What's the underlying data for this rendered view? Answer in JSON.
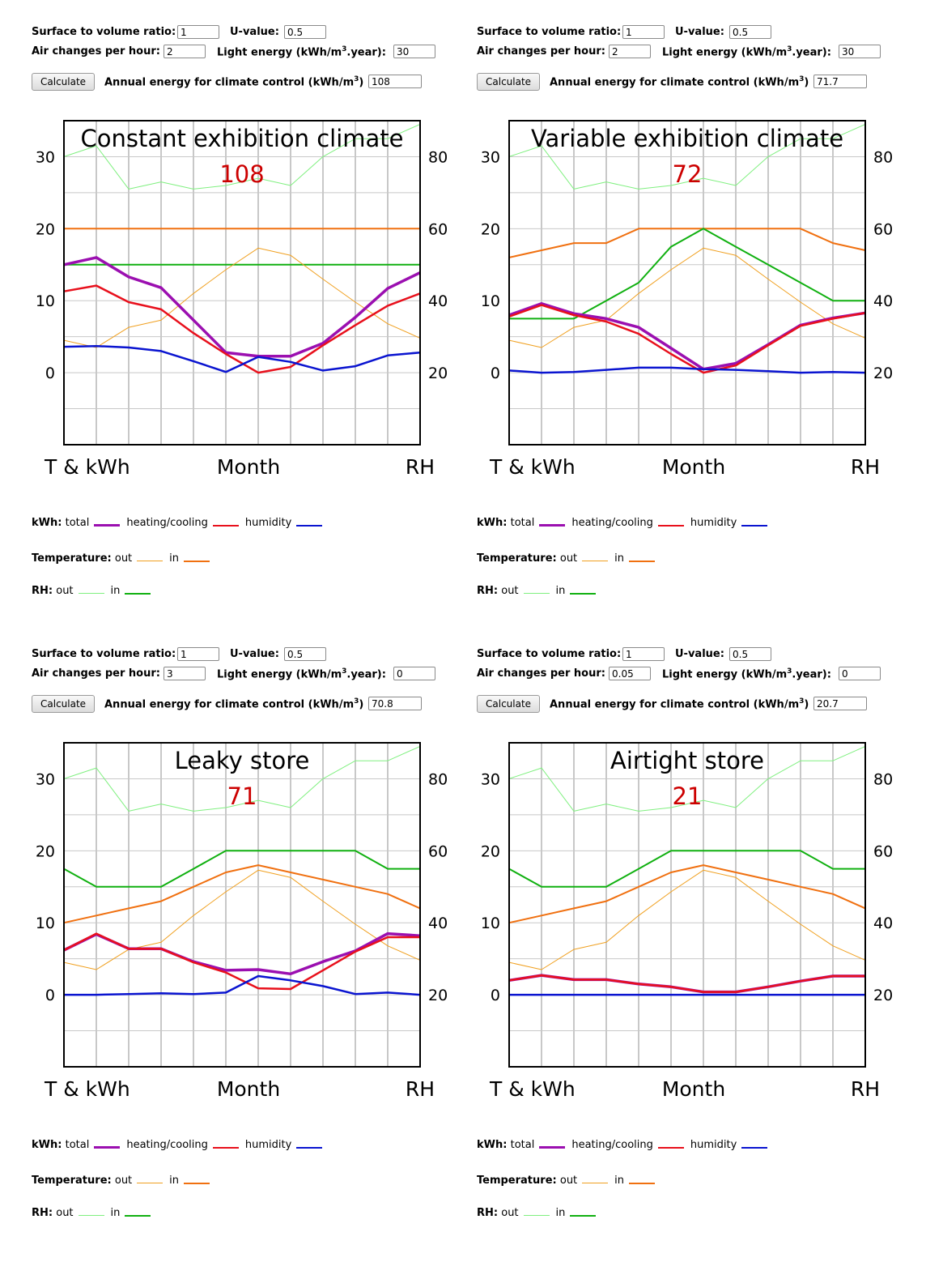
{
  "labels": {
    "surface": "Surface to volume ratio:",
    "uvalue": "U-value:",
    "air": "Air changes per hour:",
    "light_pre": "Light energy (kWh/m",
    "light_post": ".year):",
    "annual_pre": "Annual energy for climate control (kWh/m",
    "annual_post": ")",
    "sup3": "3",
    "calculate": "Calculate",
    "axis_left": "T & kWh",
    "axis_mid": "Month",
    "axis_right": "RH",
    "legend_kwh": "kWh:",
    "legend_total": "total",
    "legend_hc": "heating/cooling",
    "legend_hum": "humidity",
    "legend_temp": "Temperature:",
    "legend_rh": "RH:",
    "legend_out": "out",
    "legend_in": "in"
  },
  "colors": {
    "total": "#9b0fb0",
    "hc": "#e8101c",
    "hum": "#0a14d0",
    "t_out": "#f0a020",
    "t_in": "#f07010",
    "rh_out": "#80f080",
    "rh_in": "#10b010",
    "grid": "#c8c8c8",
    "value_text": "#cc0000"
  },
  "panels": [
    {
      "inputs": {
        "surface": "1",
        "uvalue": "0.5",
        "air": "2",
        "light": "30",
        "annual": "108"
      },
      "chart_data": {
        "type": "line",
        "title": "Constant exhibition climate",
        "value_label": "108",
        "x": [
          1,
          2,
          3,
          4,
          5,
          6,
          7,
          8,
          9,
          10,
          11,
          12
        ],
        "xlabel": "Month",
        "y_left": {
          "label": "T & kWh",
          "range": [
            -10,
            35
          ],
          "ticks": [
            0,
            10,
            20,
            30
          ]
        },
        "y_right": {
          "label": "RH",
          "range": [
            0,
            90
          ],
          "ticks": [
            20,
            40,
            60,
            80
          ]
        },
        "series": [
          {
            "key": "rh_out",
            "axis": "right",
            "values": [
              80,
              83,
              71,
              73,
              71,
              72,
              74,
              72,
              80,
              85,
              85,
              89
            ]
          },
          {
            "key": "t_in",
            "axis": "left",
            "values": [
              20,
              20,
              20,
              20,
              20,
              20,
              20,
              20,
              20,
              20,
              20,
              20
            ]
          },
          {
            "key": "rh_in",
            "axis": "right",
            "values": [
              50,
              50,
              50,
              50,
              50,
              50,
              50,
              50,
              50,
              50,
              50,
              50
            ]
          },
          {
            "key": "t_out",
            "axis": "left",
            "values": [
              4.5,
              3.5,
              6.3,
              7.3,
              11,
              14.3,
              17.3,
              16.3,
              13,
              9.8,
              6.8,
              4.8
            ]
          },
          {
            "key": "total",
            "axis": "left",
            "values": [
              15,
              16,
              13.3,
              11.8,
              7.3,
              2.8,
              2.3,
              2.3,
              4.1,
              7.7,
              11.7,
              13.9
            ]
          },
          {
            "key": "hc",
            "axis": "left",
            "values": [
              11.3,
              12.1,
              9.8,
              8.8,
              5.5,
              2.6,
              0,
              0.8,
              3.8,
              6.6,
              9.3,
              11
            ]
          },
          {
            "key": "hum",
            "axis": "left",
            "values": [
              3.6,
              3.7,
              3.5,
              3,
              1.6,
              0.1,
              2.2,
              1.5,
              0.3,
              0.9,
              2.4,
              2.8
            ]
          }
        ]
      }
    },
    {
      "inputs": {
        "surface": "1",
        "uvalue": "0.5",
        "air": "2",
        "light": "30",
        "annual": "71.7"
      },
      "chart_data": {
        "type": "line",
        "title": "Variable exhibition climate",
        "value_label": "72",
        "x": [
          1,
          2,
          3,
          4,
          5,
          6,
          7,
          8,
          9,
          10,
          11,
          12
        ],
        "xlabel": "Month",
        "y_left": {
          "label": "T & kWh",
          "range": [
            -10,
            35
          ],
          "ticks": [
            0,
            10,
            20,
            30
          ]
        },
        "y_right": {
          "label": "RH",
          "range": [
            0,
            90
          ],
          "ticks": [
            20,
            40,
            60,
            80
          ]
        },
        "series": [
          {
            "key": "rh_out",
            "axis": "right",
            "values": [
              80,
              83,
              71,
              73,
              71,
              72,
              74,
              72,
              80,
              85,
              85,
              89
            ]
          },
          {
            "key": "t_in",
            "axis": "left",
            "values": [
              16,
              17,
              18,
              18,
              20,
              20,
              20,
              20,
              20,
              20,
              18,
              17
            ]
          },
          {
            "key": "rh_in",
            "axis": "right",
            "values": [
              35,
              35,
              35,
              40,
              45,
              55,
              60,
              55,
              50,
              45,
              40,
              40
            ]
          },
          {
            "key": "t_out",
            "axis": "left",
            "values": [
              4.5,
              3.5,
              6.3,
              7.3,
              11,
              14.3,
              17.3,
              16.3,
              13,
              9.8,
              6.8,
              4.8
            ]
          },
          {
            "key": "total",
            "axis": "left",
            "values": [
              8,
              9.6,
              8.2,
              7.5,
              6.3,
              3.4,
              0.5,
              1.3,
              3.9,
              6.6,
              7.6,
              8.3
            ]
          },
          {
            "key": "hc",
            "axis": "left",
            "values": [
              7.8,
              9.4,
              8,
              7.1,
              5.4,
              2.6,
              0,
              1,
              3.8,
              6.5,
              7.5,
              8.3
            ]
          },
          {
            "key": "hum",
            "axis": "left",
            "values": [
              0.3,
              0,
              0.1,
              0.4,
              0.7,
              0.7,
              0.5,
              0.4,
              0.2,
              0,
              0.1,
              0
            ]
          }
        ]
      }
    },
    {
      "inputs": {
        "surface": "1",
        "uvalue": "0.5",
        "air": "3",
        "light": "0",
        "annual": "70.8"
      },
      "chart_data": {
        "type": "line",
        "title": "Leaky store",
        "value_label": "71",
        "x": [
          1,
          2,
          3,
          4,
          5,
          6,
          7,
          8,
          9,
          10,
          11,
          12
        ],
        "xlabel": "Month",
        "y_left": {
          "label": "T & kWh",
          "range": [
            -10,
            35
          ],
          "ticks": [
            0,
            10,
            20,
            30
          ]
        },
        "y_right": {
          "label": "RH",
          "range": [
            0,
            90
          ],
          "ticks": [
            20,
            40,
            60,
            80
          ]
        },
        "series": [
          {
            "key": "rh_out",
            "axis": "right",
            "values": [
              80,
              83,
              71,
              73,
              71,
              72,
              74,
              72,
              80,
              85,
              85,
              89
            ]
          },
          {
            "key": "t_in",
            "axis": "left",
            "values": [
              10,
              11,
              12,
              13,
              15,
              17,
              18,
              17,
              16,
              15,
              14,
              12
            ]
          },
          {
            "key": "rh_in",
            "axis": "right",
            "values": [
              55,
              50,
              50,
              50,
              55,
              60,
              60,
              60,
              60,
              60,
              55,
              55
            ]
          },
          {
            "key": "t_out",
            "axis": "left",
            "values": [
              4.5,
              3.5,
              6.3,
              7.3,
              11,
              14.3,
              17.3,
              16.3,
              13,
              9.8,
              6.8,
              4.8
            ]
          },
          {
            "key": "total",
            "axis": "left",
            "values": [
              6.2,
              8.4,
              6.4,
              6.4,
              4.6,
              3.4,
              3.5,
              2.9,
              4.6,
              6.1,
              8.5,
              8.2
            ]
          },
          {
            "key": "hc",
            "axis": "left",
            "values": [
              6.2,
              8.5,
              6.4,
              6.4,
              4.5,
              3.1,
              0.9,
              0.8,
              3.4,
              6,
              8,
              8
            ]
          },
          {
            "key": "hum",
            "axis": "left",
            "values": [
              0,
              0,
              0.1,
              0.2,
              0.1,
              0.3,
              2.6,
              2,
              1.2,
              0.1,
              0.3,
              0
            ]
          }
        ]
      }
    },
    {
      "inputs": {
        "surface": "1",
        "uvalue": "0.5",
        "air": "0.05",
        "light": "0",
        "annual": "20.7"
      },
      "chart_data": {
        "type": "line",
        "title": "Airtight store",
        "value_label": "21",
        "x": [
          1,
          2,
          3,
          4,
          5,
          6,
          7,
          8,
          9,
          10,
          11,
          12
        ],
        "xlabel": "Month",
        "y_left": {
          "label": "T & kWh",
          "range": [
            -10,
            35
          ],
          "ticks": [
            0,
            10,
            20,
            30
          ]
        },
        "y_right": {
          "label": "RH",
          "range": [
            0,
            90
          ],
          "ticks": [
            20,
            40,
            60,
            80
          ]
        },
        "series": [
          {
            "key": "rh_out",
            "axis": "right",
            "values": [
              80,
              83,
              71,
              73,
              71,
              72,
              74,
              72,
              80,
              85,
              85,
              89
            ]
          },
          {
            "key": "t_in",
            "axis": "left",
            "values": [
              10,
              11,
              12,
              13,
              15,
              17,
              18,
              17,
              16,
              15,
              14,
              12
            ]
          },
          {
            "key": "rh_in",
            "axis": "right",
            "values": [
              55,
              50,
              50,
              50,
              55,
              60,
              60,
              60,
              60,
              60,
              55,
              55
            ]
          },
          {
            "key": "t_out",
            "axis": "left",
            "values": [
              4.5,
              3.5,
              6.3,
              7.3,
              11,
              14.3,
              17.3,
              16.3,
              13,
              9.8,
              6.8,
              4.8
            ]
          },
          {
            "key": "total",
            "axis": "left",
            "values": [
              2,
              2.7,
              2.1,
              2.1,
              1.5,
              1.1,
              0.4,
              0.4,
              1.1,
              1.9,
              2.6,
              2.6
            ]
          },
          {
            "key": "hc",
            "axis": "left",
            "values": [
              2,
              2.7,
              2.1,
              2.1,
              1.5,
              1.1,
              0.4,
              0.4,
              1.1,
              1.9,
              2.6,
              2.6
            ]
          },
          {
            "key": "hum",
            "axis": "left",
            "values": [
              0,
              0,
              0,
              0,
              0,
              0,
              0,
              0,
              0,
              0,
              0,
              0
            ]
          }
        ]
      }
    }
  ]
}
